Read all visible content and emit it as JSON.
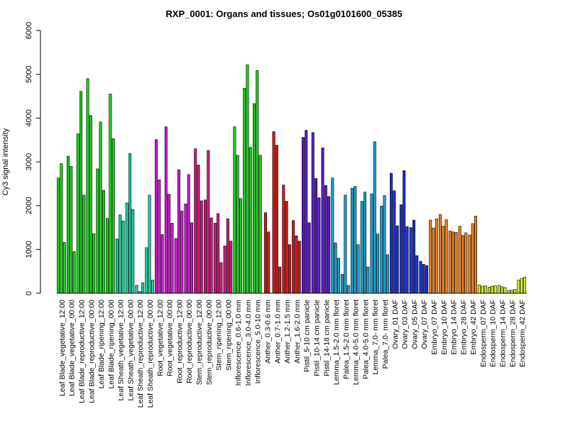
{
  "chart_data": {
    "type": "bar",
    "title": "RXP_0001: Organs and tissues; Os01g0101600_05385",
    "xlabel": "",
    "ylabel": "Cy3 signal intensity",
    "ylim": [
      0,
      6000
    ],
    "yticks": [
      0,
      1000,
      2000,
      3000,
      4000,
      5000,
      6000
    ],
    "grid": false,
    "legend": "none",
    "groups": [
      {
        "label": "Leaf Blade_vegetative_12:00",
        "color": "#19d219",
        "values": [
          2630,
          2960,
          1160
        ]
      },
      {
        "label": "Leaf Blade_vegetative_00:00",
        "color": "#19d219",
        "values": [
          3130,
          2900,
          950
        ]
      },
      {
        "label": "Leaf Blade_reproductive_12:00",
        "color": "#19d219",
        "values": [
          3640,
          4610,
          2240
        ]
      },
      {
        "label": "Leaf Blade_reproductive_00:00",
        "color": "#19d219",
        "values": [
          4900,
          4060,
          1360
        ]
      },
      {
        "label": "Leaf Blade_ripening_12:00",
        "color": "#19d219",
        "values": [
          2840,
          3910,
          2350
        ]
      },
      {
        "label": "Leaf Blade_ripening_00:00",
        "color": "#19d219",
        "values": [
          1710,
          4550,
          3530
        ]
      },
      {
        "label": "Leaf Sheath_vegetative_12:00",
        "color": "#19d2a0",
        "values": [
          1240,
          1790,
          1650
        ]
      },
      {
        "label": "Leaf Sheath_vegetative_00:00",
        "color": "#19d2a0",
        "values": [
          2060,
          3190,
          1910
        ]
      },
      {
        "label": "Leaf Sheath_reproductive_12:00",
        "color": "#19d2a0",
        "values": [
          180,
          40,
          240
        ]
      },
      {
        "label": "Leaf Sheath_reproductive_00:00",
        "color": "#19d2a0",
        "values": [
          1040,
          2240,
          300
        ]
      },
      {
        "label": "Root_vegetative_12:00",
        "color": "#d219d2",
        "values": [
          3510,
          2590,
          1340
        ]
      },
      {
        "label": "Root_vegetative_00:00",
        "color": "#d219d2",
        "values": [
          3800,
          2260,
          1600
        ]
      },
      {
        "label": "Root_reproductive_12:00",
        "color": "#d219d2",
        "values": [
          1250,
          2820,
          1880
        ]
      },
      {
        "label": "Root_reproductive_00:00",
        "color": "#d219d2",
        "values": [
          2040,
          2710,
          1610
        ]
      },
      {
        "label": "Stem_reproductive_12:00",
        "color": "#d2197a",
        "values": [
          3300,
          2930,
          2110
        ]
      },
      {
        "label": "Stem_reproductive_00:00",
        "color": "#d2197a",
        "values": [
          2130,
          3260,
          1720
        ]
      },
      {
        "label": "Stem_ripening_12:00",
        "color": "#d2197a",
        "values": [
          1600,
          1820,
          700
        ]
      },
      {
        "label": "Stem_ripening_00:00",
        "color": "#d2197a",
        "values": [
          1080,
          1700,
          1190
        ]
      },
      {
        "label": "Inflorescence_0.6-1.0 mm",
        "color": "#19d219",
        "values": [
          3800,
          3150,
          2160
        ]
      },
      {
        "label": "Inflorescence_3.0-4.0 mm",
        "color": "#19d219",
        "values": [
          4680,
          5220,
          3330
        ]
      },
      {
        "label": "Inflorescence_5.0-10 mm",
        "color": "#19d219",
        "values": [
          4330,
          5090,
          3150
        ]
      },
      {
        "label": "Anther_0.3-0.6 mm",
        "color": "#d21919",
        "values": [
          1840,
          1400
        ]
      },
      {
        "label": "Anther_0.7-1.0 mm",
        "color": "#d21919",
        "values": [
          3690,
          3380,
          600
        ]
      },
      {
        "label": "Anther_1.2-1.5 mm",
        "color": "#d21919",
        "values": [
          2470,
          2100,
          1110
        ]
      },
      {
        "label": "Anther_1.6-2.0 mm",
        "color": "#d21919",
        "values": [
          1660,
          1310,
          1190
        ]
      },
      {
        "label": "Pistil_5-10 cm panicle",
        "color": "#5a19d2",
        "values": [
          3560,
          3720,
          1610
        ]
      },
      {
        "label": "Pistil_10-14 cm panicle",
        "color": "#5a19d2",
        "values": [
          3670,
          2620,
          2180
        ]
      },
      {
        "label": "Pistil_14-18 cm panicle",
        "color": "#5a19d2",
        "values": [
          3320,
          2460,
          2210
        ]
      },
      {
        "label": "Lemma_1.5-2.0 mm floret",
        "color": "#19a0d2",
        "values": [
          2630,
          1150,
          800
        ]
      },
      {
        "label": "Palea_1.5-2.0 mm floret",
        "color": "#19a0d2",
        "values": [
          430,
          2240,
          180
        ]
      },
      {
        "label": "Lemma_4.0-5.0 mm floret",
        "color": "#19a0d2",
        "values": [
          2400,
          2440,
          1110
        ]
      },
      {
        "label": "Palea_4.0-5.0 mm floret",
        "color": "#19a0d2",
        "values": [
          2100,
          2310,
          600
        ]
      },
      {
        "label": "Lemma_7.0- mm floret",
        "color": "#19a0d2",
        "values": [
          2270,
          3460,
          1350
        ]
      },
      {
        "label": "Palea_7.0- mm floret",
        "color": "#19a0d2",
        "values": [
          1990,
          2230,
          880
        ]
      },
      {
        "label": "Ovary_01 DAF",
        "color": "#1932d2",
        "values": [
          2740,
          2340,
          1540
        ]
      },
      {
        "label": "Ovary_03 DAF",
        "color": "#1932d2",
        "values": [
          2020,
          2800,
          1520
        ]
      },
      {
        "label": "Ovary_05 DAF",
        "color": "#1932d2",
        "values": [
          1500,
          1670,
          860
        ]
      },
      {
        "label": "Ovary_07 DAF",
        "color": "#1932d2",
        "values": [
          730,
          660,
          630
        ]
      },
      {
        "label": "Embryo_07 DAF",
        "color": "#f08219",
        "values": [
          1670,
          1490,
          1700
        ]
      },
      {
        "label": "Embryo_10 DAF",
        "color": "#f08219",
        "values": [
          1800,
          1530,
          1680
        ]
      },
      {
        "label": "Embryo_14 DAF",
        "color": "#f08219",
        "values": [
          1420,
          1400,
          1390
        ]
      },
      {
        "label": "Embryo_28 DAF",
        "color": "#f08219",
        "values": [
          1530,
          1320,
          1380
        ]
      },
      {
        "label": "Embryo_42 DAF",
        "color": "#f08219",
        "values": [
          1330,
          1590,
          1760
        ]
      },
      {
        "label": "Endosperm_07 DAF",
        "color": "#d2f019",
        "values": [
          190,
          160,
          170
        ]
      },
      {
        "label": "Endosperm_10 DAF",
        "color": "#d2f019",
        "values": [
          140,
          160,
          170
        ]
      },
      {
        "label": "Endosperm_14 DAF",
        "color": "#d2f019",
        "values": [
          180,
          150,
          130
        ]
      },
      {
        "label": "Endosperm_28 DAF",
        "color": "#d2f019",
        "values": [
          60,
          70,
          90
        ]
      },
      {
        "label": "Endosperm_42 DAF",
        "color": "#d2f019",
        "values": [
          300,
          340,
          370
        ]
      }
    ]
  }
}
